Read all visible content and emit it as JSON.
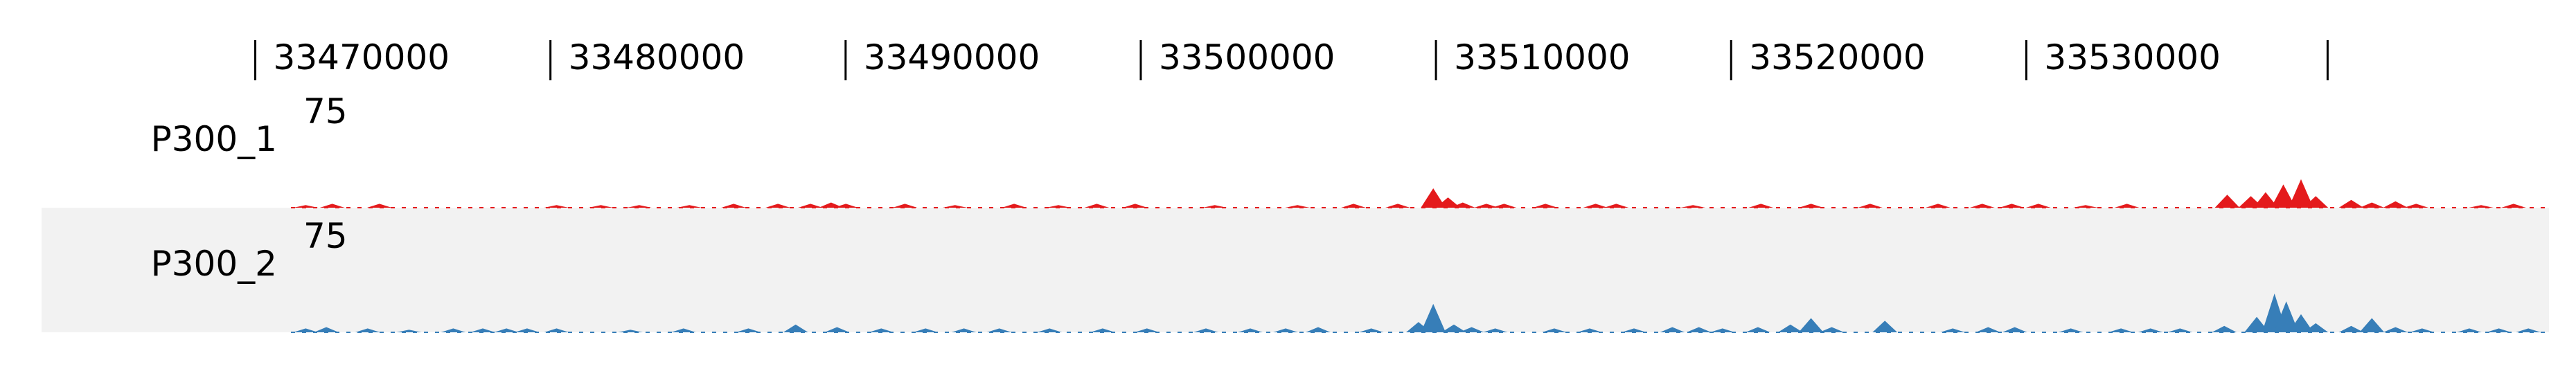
{
  "chart_data": {
    "type": "area",
    "title": "",
    "xlabel": "",
    "ylabel": "",
    "x_ticks": [
      33470000,
      33480000,
      33490000,
      33500000,
      33510000,
      33520000,
      33530000
    ],
    "x_tick_labels": [
      "33470000",
      "33480000",
      "33490000",
      "33500000",
      "33510000",
      "33520000",
      "33530000"
    ],
    "xlim": [
      33461000,
      33537500
    ],
    "grid": false,
    "legend": "none",
    "tracks": [
      {
        "name": "P300_1",
        "max_label": "75",
        "ylim": [
          0,
          75
        ],
        "color": "#e41a1c",
        "background": "#ffffff",
        "peaks": [
          {
            "x": 33461500,
            "y": 2
          },
          {
            "x": 33462400,
            "y": 3
          },
          {
            "x": 33464000,
            "y": 3
          },
          {
            "x": 33470000,
            "y": 2
          },
          {
            "x": 33471500,
            "y": 2
          },
          {
            "x": 33472800,
            "y": 2
          },
          {
            "x": 33474500,
            "y": 2
          },
          {
            "x": 33476000,
            "y": 3
          },
          {
            "x": 33477500,
            "y": 3
          },
          {
            "x": 33478600,
            "y": 3
          },
          {
            "x": 33479300,
            "y": 4
          },
          {
            "x": 33479800,
            "y": 3
          },
          {
            "x": 33481800,
            "y": 3
          },
          {
            "x": 33483500,
            "y": 2
          },
          {
            "x": 33485500,
            "y": 3
          },
          {
            "x": 33487000,
            "y": 2
          },
          {
            "x": 33488300,
            "y": 3
          },
          {
            "x": 33489600,
            "y": 3
          },
          {
            "x": 33492300,
            "y": 2
          },
          {
            "x": 33495100,
            "y": 2
          },
          {
            "x": 33497000,
            "y": 3
          },
          {
            "x": 33498500,
            "y": 3
          },
          {
            "x": 33499700,
            "y": 15
          },
          {
            "x": 33500200,
            "y": 8
          },
          {
            "x": 33500700,
            "y": 4
          },
          {
            "x": 33501500,
            "y": 3
          },
          {
            "x": 33502100,
            "y": 3
          },
          {
            "x": 33503500,
            "y": 3
          },
          {
            "x": 33505200,
            "y": 3
          },
          {
            "x": 33505900,
            "y": 3
          },
          {
            "x": 33508500,
            "y": 2
          },
          {
            "x": 33510800,
            "y": 3
          },
          {
            "x": 33512500,
            "y": 3
          },
          {
            "x": 33514500,
            "y": 3
          },
          {
            "x": 33516800,
            "y": 3
          },
          {
            "x": 33518300,
            "y": 3
          },
          {
            "x": 33519300,
            "y": 3
          },
          {
            "x": 33520200,
            "y": 3
          },
          {
            "x": 33521800,
            "y": 2
          },
          {
            "x": 33523200,
            "y": 3
          },
          {
            "x": 33526600,
            "y": 10
          },
          {
            "x": 33527400,
            "y": 9
          },
          {
            "x": 33527900,
            "y": 12
          },
          {
            "x": 33528500,
            "y": 18
          },
          {
            "x": 33529100,
            "y": 22
          },
          {
            "x": 33529600,
            "y": 9
          },
          {
            "x": 33530800,
            "y": 6
          },
          {
            "x": 33531500,
            "y": 4
          },
          {
            "x": 33532300,
            "y": 5
          },
          {
            "x": 33533000,
            "y": 3
          },
          {
            "x": 33535200,
            "y": 2
          },
          {
            "x": 33536300,
            "y": 3
          }
        ]
      },
      {
        "name": "P300_2",
        "max_label": "75",
        "ylim": [
          0,
          75
        ],
        "color": "#377eb8",
        "background": "#f2f2f2",
        "peaks": [
          {
            "x": 33461500,
            "y": 3
          },
          {
            "x": 33462200,
            "y": 4
          },
          {
            "x": 33463600,
            "y": 3
          },
          {
            "x": 33465000,
            "y": 2
          },
          {
            "x": 33466500,
            "y": 3
          },
          {
            "x": 33467500,
            "y": 3
          },
          {
            "x": 33468300,
            "y": 3
          },
          {
            "x": 33469000,
            "y": 3
          },
          {
            "x": 33470000,
            "y": 3
          },
          {
            "x": 33472500,
            "y": 2
          },
          {
            "x": 33474300,
            "y": 3
          },
          {
            "x": 33476500,
            "y": 3
          },
          {
            "x": 33478100,
            "y": 6
          },
          {
            "x": 33479500,
            "y": 4
          },
          {
            "x": 33481000,
            "y": 3
          },
          {
            "x": 33482500,
            "y": 3
          },
          {
            "x": 33483800,
            "y": 3
          },
          {
            "x": 33485000,
            "y": 3
          },
          {
            "x": 33486700,
            "y": 3
          },
          {
            "x": 33488500,
            "y": 3
          },
          {
            "x": 33490000,
            "y": 3
          },
          {
            "x": 33492000,
            "y": 3
          },
          {
            "x": 33493500,
            "y": 3
          },
          {
            "x": 33494700,
            "y": 3
          },
          {
            "x": 33495800,
            "y": 4
          },
          {
            "x": 33497600,
            "y": 3
          },
          {
            "x": 33499200,
            "y": 8
          },
          {
            "x": 33499700,
            "y": 22
          },
          {
            "x": 33500400,
            "y": 6
          },
          {
            "x": 33501000,
            "y": 4
          },
          {
            "x": 33501800,
            "y": 3
          },
          {
            "x": 33503800,
            "y": 3
          },
          {
            "x": 33505000,
            "y": 3
          },
          {
            "x": 33506500,
            "y": 3
          },
          {
            "x": 33507800,
            "y": 4
          },
          {
            "x": 33508700,
            "y": 4
          },
          {
            "x": 33509500,
            "y": 3
          },
          {
            "x": 33510700,
            "y": 4
          },
          {
            "x": 33511800,
            "y": 6
          },
          {
            "x": 33512500,
            "y": 11
          },
          {
            "x": 33513200,
            "y": 4
          },
          {
            "x": 33515000,
            "y": 9
          },
          {
            "x": 33517300,
            "y": 3
          },
          {
            "x": 33518500,
            "y": 4
          },
          {
            "x": 33519400,
            "y": 4
          },
          {
            "x": 33521300,
            "y": 3
          },
          {
            "x": 33523000,
            "y": 3
          },
          {
            "x": 33524000,
            "y": 3
          },
          {
            "x": 33525000,
            "y": 3
          },
          {
            "x": 33526500,
            "y": 5
          },
          {
            "x": 33527600,
            "y": 12
          },
          {
            "x": 33528200,
            "y": 30
          },
          {
            "x": 33528600,
            "y": 24
          },
          {
            "x": 33529100,
            "y": 14
          },
          {
            "x": 33529600,
            "y": 7
          },
          {
            "x": 33530800,
            "y": 5
          },
          {
            "x": 33531500,
            "y": 11
          },
          {
            "x": 33532300,
            "y": 4
          },
          {
            "x": 33533200,
            "y": 3
          },
          {
            "x": 33534800,
            "y": 3
          },
          {
            "x": 33535800,
            "y": 3
          },
          {
            "x": 33536800,
            "y": 3
          }
        ]
      }
    ]
  }
}
